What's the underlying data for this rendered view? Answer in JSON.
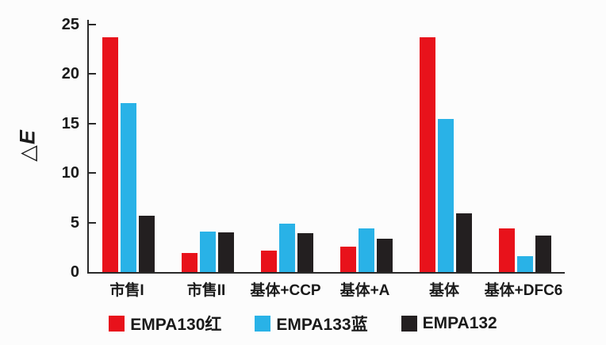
{
  "chart_data": {
    "type": "bar",
    "title": "",
    "ylabel_prefix": "△",
    "ylabel_main": "E",
    "xlabel": "",
    "categories": [
      "市售I",
      "市售II",
      "基体+CCP",
      "基体+A",
      "基体",
      "基体+DFC6"
    ],
    "series": [
      {
        "name": "EMPA130红",
        "color": "#e8121b",
        "values": [
          23.7,
          1.9,
          2.2,
          2.6,
          23.7,
          4.4
        ]
      },
      {
        "name": "EMPA133蓝",
        "color": "#29b2e7",
        "values": [
          17.1,
          4.1,
          4.9,
          4.4,
          15.5,
          1.6
        ]
      },
      {
        "name": "EMPA132",
        "color": "#231f20",
        "values": [
          5.7,
          4.0,
          3.9,
          3.4,
          5.9,
          3.7
        ]
      }
    ],
    "ylim": [
      0,
      25
    ],
    "yticks": [
      0,
      5,
      10,
      15,
      20,
      25
    ],
    "grid": false,
    "legend_position": "bottom-center"
  },
  "colors": {
    "axis": "#2a2a2a",
    "text": "#1a1a1a",
    "background": "#fcfcfc"
  }
}
